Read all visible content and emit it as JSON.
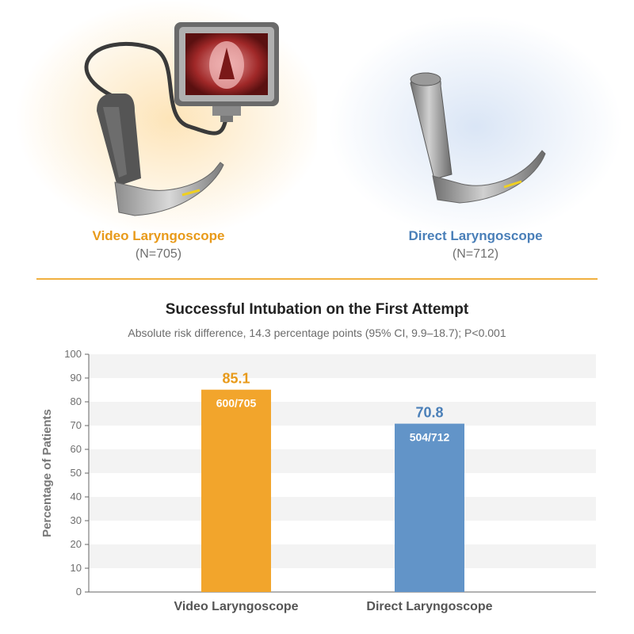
{
  "devices": {
    "video": {
      "label": "Video Laryngoscope",
      "n": "(N=705)",
      "color": "#e89a1a",
      "icon": "video-laryngoscope-icon"
    },
    "direct": {
      "label": "Direct Laryngoscope",
      "n": "(N=712)",
      "color": "#4a7fb8",
      "icon": "direct-laryngoscope-icon"
    }
  },
  "colors": {
    "divider": "#f0b040",
    "video_bar": "#f2a52c",
    "direct_bar": "#6294c8",
    "video_value": "#e89a1a",
    "direct_value": "#4a7fb8",
    "band": "#f3f3f3"
  },
  "chart_data": {
    "type": "bar",
    "title": "Successful Intubation on the First Attempt",
    "subtitle": "Absolute risk difference, 14.3 percentage points (95% CI, 9.9–18.7); P<0.001",
    "xlabel": "",
    "ylabel": "Percentage of Patients",
    "ylim": [
      0,
      100
    ],
    "yticks": [
      0,
      10,
      20,
      30,
      40,
      50,
      60,
      70,
      80,
      90,
      100
    ],
    "categories": [
      "Video Laryngoscope",
      "Direct Laryngoscope"
    ],
    "values": [
      85.1,
      70.8
    ],
    "value_labels": [
      "85.1",
      "70.8"
    ],
    "fractions": [
      "600/705",
      "504/712"
    ],
    "grid": "alternating horizontal bands",
    "legend": "none"
  }
}
